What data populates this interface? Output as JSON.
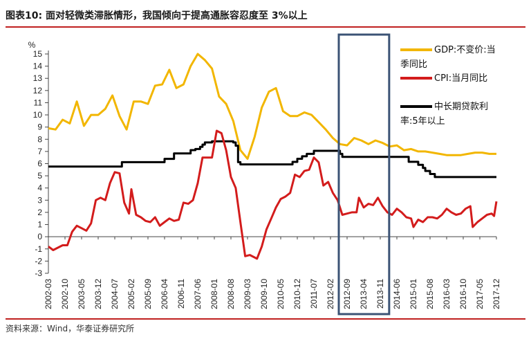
{
  "figure": {
    "title": "图表10:   面对轻微类滞胀情形，我国倾向于提高通胀容忍度至 3%以上",
    "source": "资料来源：Wind，华泰证券研究所",
    "accent_color": "#c0201f"
  },
  "chart_data": {
    "type": "line",
    "y_unit_label": "%",
    "ylim": [
      -3,
      15
    ],
    "y_ticks": [
      "-3",
      "-2",
      "-1",
      "0",
      "1",
      "2",
      "3",
      "4",
      "5",
      "6",
      "7",
      "8",
      "9",
      "10",
      "11",
      "12",
      "13",
      "14",
      "15"
    ],
    "x_range": [
      "2002-03",
      "2017-12"
    ],
    "x_tick_labels": [
      "2002-03",
      "2002-10",
      "2003-05",
      "2003-12",
      "2004-07",
      "2005-02",
      "2005-09",
      "2006-04",
      "2006-11",
      "2007-06",
      "2008-01",
      "2008-08",
      "2009-03",
      "2009-10",
      "2010-05",
      "2010-12",
      "2011-07",
      "2012-02",
      "2012-09",
      "2013-04",
      "2013-11",
      "2014-06",
      "2015-01",
      "2015-08",
      "2016-03",
      "2016-10",
      "2017-05",
      "2017-12"
    ],
    "grid": false,
    "legend_position": "right",
    "highlight_box": {
      "from": "2012-09",
      "to": "2014-01",
      "color": "#3b5375"
    },
    "series": [
      {
        "name": "GDP:不变价:当季同比",
        "legend_lines": [
          "GDP:不变价:当",
          "季同比"
        ],
        "color": "#f2b600",
        "step": false,
        "points": [
          [
            "2002-03",
            8.9
          ],
          [
            "2002-06",
            8.8
          ],
          [
            "2002-09",
            9.6
          ],
          [
            "2002-12",
            9.3
          ],
          [
            "2003-03",
            11.1
          ],
          [
            "2003-06",
            9.1
          ],
          [
            "2003-09",
            10.0
          ],
          [
            "2003-12",
            10.0
          ],
          [
            "2004-03",
            10.5
          ],
          [
            "2004-06",
            11.6
          ],
          [
            "2004-09",
            9.9
          ],
          [
            "2004-12",
            8.8
          ],
          [
            "2005-03",
            11.1
          ],
          [
            "2005-06",
            11.1
          ],
          [
            "2005-09",
            10.9
          ],
          [
            "2005-12",
            12.4
          ],
          [
            "2006-03",
            12.5
          ],
          [
            "2006-06",
            13.7
          ],
          [
            "2006-09",
            12.2
          ],
          [
            "2006-12",
            12.5
          ],
          [
            "2007-03",
            14.0
          ],
          [
            "2007-06",
            15.0
          ],
          [
            "2007-09",
            14.5
          ],
          [
            "2007-12",
            13.8
          ],
          [
            "2008-03",
            11.5
          ],
          [
            "2008-06",
            10.9
          ],
          [
            "2008-09",
            9.5
          ],
          [
            "2008-12",
            7.1
          ],
          [
            "2009-03",
            6.4
          ],
          [
            "2009-06",
            8.2
          ],
          [
            "2009-09",
            10.6
          ],
          [
            "2009-12",
            11.9
          ],
          [
            "2010-03",
            12.2
          ],
          [
            "2010-06",
            10.3
          ],
          [
            "2010-09",
            9.9
          ],
          [
            "2010-12",
            9.9
          ],
          [
            "2011-03",
            10.2
          ],
          [
            "2011-06",
            10.0
          ],
          [
            "2011-09",
            9.4
          ],
          [
            "2011-12",
            8.8
          ],
          [
            "2012-03",
            8.1
          ],
          [
            "2012-06",
            7.6
          ],
          [
            "2012-09",
            7.5
          ],
          [
            "2012-12",
            8.1
          ],
          [
            "2013-03",
            7.9
          ],
          [
            "2013-06",
            7.6
          ],
          [
            "2013-09",
            7.9
          ],
          [
            "2013-12",
            7.7
          ],
          [
            "2014-03",
            7.4
          ],
          [
            "2014-06",
            7.5
          ],
          [
            "2014-09",
            7.1
          ],
          [
            "2014-12",
            7.2
          ],
          [
            "2015-03",
            7.0
          ],
          [
            "2015-06",
            7.0
          ],
          [
            "2015-09",
            6.9
          ],
          [
            "2015-12",
            6.8
          ],
          [
            "2016-03",
            6.7
          ],
          [
            "2016-06",
            6.7
          ],
          [
            "2016-09",
            6.7
          ],
          [
            "2016-12",
            6.8
          ],
          [
            "2017-03",
            6.9
          ],
          [
            "2017-06",
            6.9
          ],
          [
            "2017-09",
            6.8
          ],
          [
            "2017-12",
            6.8
          ]
        ]
      },
      {
        "name": "CPI:当月同比",
        "legend_lines": [
          "CPI:当月同比"
        ],
        "color": "#d31c1c",
        "step": false,
        "points": [
          [
            "2002-03",
            -0.8
          ],
          [
            "2002-05",
            -1.1
          ],
          [
            "2002-07",
            -0.9
          ],
          [
            "2002-09",
            -0.7
          ],
          [
            "2002-11",
            -0.7
          ],
          [
            "2003-01",
            0.4
          ],
          [
            "2003-03",
            0.9
          ],
          [
            "2003-05",
            0.7
          ],
          [
            "2003-07",
            0.5
          ],
          [
            "2003-09",
            1.1
          ],
          [
            "2003-11",
            3.0
          ],
          [
            "2004-01",
            3.2
          ],
          [
            "2004-03",
            3.0
          ],
          [
            "2004-05",
            4.4
          ],
          [
            "2004-07",
            5.3
          ],
          [
            "2004-09",
            5.2
          ],
          [
            "2004-11",
            2.8
          ],
          [
            "2005-01",
            1.9
          ],
          [
            "2005-02",
            3.9
          ],
          [
            "2005-04",
            1.8
          ],
          [
            "2005-06",
            1.6
          ],
          [
            "2005-08",
            1.3
          ],
          [
            "2005-10",
            1.2
          ],
          [
            "2005-12",
            1.6
          ],
          [
            "2006-02",
            0.9
          ],
          [
            "2006-04",
            1.2
          ],
          [
            "2006-06",
            1.5
          ],
          [
            "2006-08",
            1.3
          ],
          [
            "2006-10",
            1.4
          ],
          [
            "2006-12",
            2.8
          ],
          [
            "2007-02",
            2.7
          ],
          [
            "2007-04",
            3.0
          ],
          [
            "2007-06",
            4.4
          ],
          [
            "2007-08",
            6.5
          ],
          [
            "2007-10",
            6.5
          ],
          [
            "2007-12",
            6.5
          ],
          [
            "2008-02",
            8.7
          ],
          [
            "2008-04",
            8.5
          ],
          [
            "2008-06",
            7.1
          ],
          [
            "2008-08",
            4.9
          ],
          [
            "2008-10",
            4.0
          ],
          [
            "2008-12",
            1.2
          ],
          [
            "2009-02",
            -1.6
          ],
          [
            "2009-04",
            -1.5
          ],
          [
            "2009-06",
            -1.7
          ],
          [
            "2009-07",
            -1.8
          ],
          [
            "2009-09",
            -0.8
          ],
          [
            "2009-11",
            0.6
          ],
          [
            "2010-01",
            1.5
          ],
          [
            "2010-03",
            2.4
          ],
          [
            "2010-05",
            3.1
          ],
          [
            "2010-07",
            3.3
          ],
          [
            "2010-09",
            3.6
          ],
          [
            "2010-11",
            5.1
          ],
          [
            "2011-01",
            4.9
          ],
          [
            "2011-03",
            5.4
          ],
          [
            "2011-05",
            5.5
          ],
          [
            "2011-07",
            6.5
          ],
          [
            "2011-09",
            6.1
          ],
          [
            "2011-11",
            4.2
          ],
          [
            "2012-01",
            4.5
          ],
          [
            "2012-03",
            3.6
          ],
          [
            "2012-05",
            3.0
          ],
          [
            "2012-07",
            1.8
          ],
          [
            "2012-09",
            1.9
          ],
          [
            "2012-11",
            2.0
          ],
          [
            "2013-01",
            2.0
          ],
          [
            "2013-02",
            3.2
          ],
          [
            "2013-04",
            2.4
          ],
          [
            "2013-06",
            2.7
          ],
          [
            "2013-08",
            2.6
          ],
          [
            "2013-10",
            3.2
          ],
          [
            "2013-12",
            2.5
          ],
          [
            "2014-02",
            2.0
          ],
          [
            "2014-04",
            1.8
          ],
          [
            "2014-06",
            2.3
          ],
          [
            "2014-08",
            2.0
          ],
          [
            "2014-10",
            1.6
          ],
          [
            "2014-12",
            1.5
          ],
          [
            "2015-01",
            0.8
          ],
          [
            "2015-03",
            1.4
          ],
          [
            "2015-05",
            1.2
          ],
          [
            "2015-07",
            1.6
          ],
          [
            "2015-09",
            1.6
          ],
          [
            "2015-11",
            1.5
          ],
          [
            "2016-01",
            1.8
          ],
          [
            "2016-03",
            2.3
          ],
          [
            "2016-05",
            2.0
          ],
          [
            "2016-07",
            1.8
          ],
          [
            "2016-09",
            1.9
          ],
          [
            "2016-11",
            2.3
          ],
          [
            "2017-01",
            2.5
          ],
          [
            "2017-02",
            0.8
          ],
          [
            "2017-04",
            1.2
          ],
          [
            "2017-06",
            1.5
          ],
          [
            "2017-08",
            1.8
          ],
          [
            "2017-10",
            1.9
          ],
          [
            "2017-11",
            1.7
          ],
          [
            "2017-12",
            2.9
          ]
        ]
      },
      {
        "name": "中长期贷款利率:5年以上",
        "legend_lines": [
          "中长期贷款利",
          "率:5年以上"
        ],
        "color": "#000000",
        "step": true,
        "points": [
          [
            "2002-03",
            5.76
          ],
          [
            "2004-10",
            6.12
          ],
          [
            "2006-04",
            6.39
          ],
          [
            "2006-08",
            6.84
          ],
          [
            "2007-03",
            7.11
          ],
          [
            "2007-05",
            7.2
          ],
          [
            "2007-07",
            7.38
          ],
          [
            "2007-08",
            7.56
          ],
          [
            "2007-09",
            7.74
          ],
          [
            "2007-12",
            7.83
          ],
          [
            "2008-09",
            7.74
          ],
          [
            "2008-10",
            7.47
          ],
          [
            "2008-11",
            6.12
          ],
          [
            "2008-12",
            5.94
          ],
          [
            "2010-10",
            6.14
          ],
          [
            "2010-12",
            6.4
          ],
          [
            "2011-02",
            6.6
          ],
          [
            "2011-04",
            6.8
          ],
          [
            "2011-07",
            7.05
          ],
          [
            "2012-06",
            6.8
          ],
          [
            "2012-07",
            6.55
          ],
          [
            "2014-11",
            6.15
          ],
          [
            "2015-03",
            5.9
          ],
          [
            "2015-05",
            5.65
          ],
          [
            "2015-06",
            5.4
          ],
          [
            "2015-08",
            5.15
          ],
          [
            "2015-10",
            4.9
          ],
          [
            "2017-12",
            4.9
          ]
        ]
      }
    ]
  }
}
